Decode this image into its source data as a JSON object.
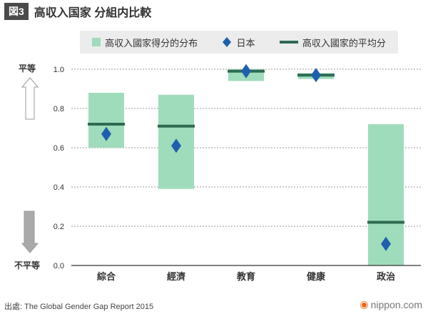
{
  "header": {
    "figure_tag": "図3",
    "title": "高収入国家 分組内比較"
  },
  "legend": {
    "range_label": "高収入國家得分的分布",
    "japan_label": "日本",
    "average_label": "高収入國家的平均分"
  },
  "direction": {
    "top_label": "平等",
    "bottom_label": "不平等"
  },
  "colors": {
    "range": "#9fdcbb",
    "average": "#2e6b52",
    "japan": "#1f5fae",
    "grid": "#999999",
    "arrow_up": "#d8d8d8",
    "arrow_down": "#a8a8a8"
  },
  "chart_data": {
    "type": "range-bar",
    "title": "高収入国家 分組内比較",
    "categories": [
      "綜合",
      "經濟",
      "教育",
      "健康",
      "政治"
    ],
    "series": [
      {
        "name": "高収入國家得分的分布 (min)",
        "values": [
          0.6,
          0.39,
          0.94,
          0.95,
          0.0
        ]
      },
      {
        "name": "高収入國家得分的分布 (max)",
        "values": [
          0.88,
          0.87,
          1.0,
          0.98,
          0.72
        ]
      },
      {
        "name": "高収入國家的平均分",
        "values": [
          0.72,
          0.71,
          0.99,
          0.97,
          0.22
        ]
      },
      {
        "name": "日本",
        "values": [
          0.67,
          0.61,
          0.99,
          0.97,
          0.11
        ]
      }
    ],
    "yticks": [
      "0.0",
      "0.2",
      "0.4",
      "0.6",
      "0.8",
      "1.0"
    ],
    "ylim": [
      0,
      1.0
    ],
    "xlabel": "",
    "ylabel": ""
  },
  "footer": {
    "source_label": "出處:",
    "source_text": "The Global Gender Gap Report 2015",
    "brand": "nippon.com"
  }
}
